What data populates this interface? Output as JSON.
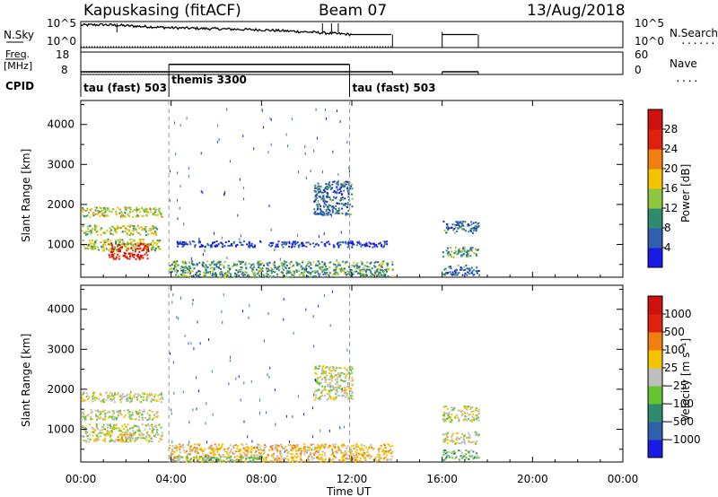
{
  "header": {
    "station": "Kapuskasing (fitACF)",
    "beam": "Beam 07",
    "date": "13/Aug/2018"
  },
  "summary_panels": {
    "nsky_label": "N.Sky",
    "nsearch_label": "N.Search",
    "nsearch_marker": "......",
    "freq_label_top": "Freq.",
    "freq_label_bottom": "[MHz]",
    "nave_label": "Nave",
    "nave_marker": "....",
    "cpid_label": "CPID",
    "noise_left_ticks": [
      "10^5",
      "10^0"
    ],
    "noise_right_ticks": [
      "10^5",
      "10^0"
    ],
    "freq_left_ticks": [
      "18",
      "8"
    ],
    "freq_right_ticks": [
      "60",
      "0"
    ],
    "cpid_segments": [
      {
        "label": "tau (fast) 503",
        "start_h": 0.0,
        "end_h": 3.9
      },
      {
        "label": "themis 3300",
        "start_h": 3.9,
        "end_h": 11.9
      },
      {
        "label": "tau (fast) 503",
        "start_h": 11.9,
        "end_h": 24.0
      }
    ]
  },
  "axes": {
    "xlabel": "Time UT",
    "x_ticks": [
      "00:00",
      "04:00",
      "08:00",
      "12:00",
      "16:00",
      "20:00",
      "00:00"
    ],
    "power_ylabel": "Slant Range [km]",
    "velocity_ylabel": "Slant Range [km]",
    "y_ticks": [
      "1000",
      "2000",
      "3000",
      "4000"
    ]
  },
  "colorbars": {
    "power": {
      "label": "Power [dB]",
      "ticks": [
        "4",
        "8",
        "12",
        "16",
        "20",
        "24",
        "28"
      ],
      "colors": [
        "#1a1ae6",
        "#2f5fae",
        "#2f8a6e",
        "#8ec63f",
        "#f5c400",
        "#f07f10",
        "#e02010",
        "#d0100c"
      ]
    },
    "velocity": {
      "label": "Velocity [m s⁻¹]",
      "ticks": [
        "1000",
        "500",
        "100",
        "25",
        "−25",
        "−100",
        "−500",
        "−1000"
      ],
      "colors": [
        "#1a1ae6",
        "#2f5fae",
        "#2f8a6e",
        "#66c433",
        "#bdbdbd",
        "#f5c400",
        "#f07f10",
        "#e02010",
        "#d0100c"
      ]
    }
  },
  "chart_data": [
    {
      "type": "line",
      "title": "Kapuskasing (fitACF)",
      "subtitle": "Beam 07",
      "series": [
        {
          "name": "N.Sky",
          "x": [
            0.0,
            1.0,
            2.0,
            3.0,
            4.0,
            6.0,
            8.0,
            10.0,
            12.0,
            13.8,
            16.0,
            17.6
          ],
          "y": [
            4.3,
            4.4,
            4.2,
            4.0,
            3.8,
            3.6,
            3.4,
            3.0,
            2.5,
            2.5,
            2.5,
            2.5
          ]
        },
        {
          "name": "N.Search",
          "x": [
            0.0,
            24.0
          ],
          "y": [
            0.0,
            0.0
          ]
        }
      ],
      "gaps_h": [
        [
          13.8,
          16.0
        ],
        [
          17.6,
          24.0
        ]
      ]
    },
    {
      "type": "line",
      "series": [
        {
          "name": "Freq.",
          "x": [
            0.0,
            3.9,
            3.9,
            11.9,
            11.9,
            13.8,
            16.0,
            17.6
          ],
          "y": [
            10.0,
            10.0,
            10.0,
            10.0,
            10.0,
            10.0,
            10.0,
            10.0
          ]
        },
        {
          "name": "Nave",
          "x": [
            3.9,
            11.9
          ],
          "y": [
            27.0,
            27.0
          ]
        }
      ]
    },
    {
      "type": "heatmap",
      "ylabel": "Slant Range [km]",
      "xlabel": "Time UT",
      "xlim": [
        0,
        24
      ],
      "ylim": [
        180,
        4600
      ],
      "colorbar_label": "Power [dB]",
      "regions": [
        {
          "x": [
            0.0,
            3.6
          ],
          "y": [
            1700,
            1950
          ],
          "level": 3
        },
        {
          "x": [
            0.0,
            3.4
          ],
          "y": [
            1250,
            1500
          ],
          "level": 3
        },
        {
          "x": [
            0.0,
            3.5
          ],
          "y": [
            850,
            1150
          ],
          "level": 3
        },
        {
          "x": [
            1.2,
            3.0
          ],
          "y": [
            650,
            1050
          ],
          "level": 6
        },
        {
          "x": [
            3.9,
            13.8
          ],
          "y": [
            200,
            600
          ],
          "level": 2
        },
        {
          "x": [
            4.2,
            13.6
          ],
          "y": [
            950,
            1100
          ],
          "level": 0
        },
        {
          "x": [
            10.3,
            12.0
          ],
          "y": [
            1750,
            2600
          ],
          "level": 1
        },
        {
          "x": [
            16.0,
            17.6
          ],
          "y": [
            1300,
            1600
          ],
          "level": 1
        },
        {
          "x": [
            16.0,
            17.6
          ],
          "y": [
            700,
            950
          ],
          "level": 2
        },
        {
          "x": [
            16.0,
            17.6
          ],
          "y": [
            250,
            500
          ],
          "level": 1
        }
      ]
    },
    {
      "type": "heatmap",
      "ylabel": "Slant Range [km]",
      "xlabel": "Time UT",
      "xlim": [
        0,
        24
      ],
      "ylim": [
        180,
        4600
      ],
      "colorbar_label": "Velocity [m s⁻¹]",
      "regions": [
        {
          "x": [
            0.0,
            3.6
          ],
          "y": [
            1700,
            1950
          ],
          "level": 4
        },
        {
          "x": [
            0.0,
            3.4
          ],
          "y": [
            1250,
            1500
          ],
          "level": 4
        },
        {
          "x": [
            0.0,
            3.6
          ],
          "y": [
            700,
            1150
          ],
          "level": 4
        },
        {
          "x": [
            1.6,
            2.4
          ],
          "y": [
            700,
            900
          ],
          "level": 5
        },
        {
          "x": [
            3.9,
            13.8
          ],
          "y": [
            200,
            650
          ],
          "level": 5
        },
        {
          "x": [
            4.0,
            8.0
          ],
          "y": [
            200,
            350
          ],
          "level": 3
        },
        {
          "x": [
            10.3,
            12.0
          ],
          "y": [
            1750,
            2600
          ],
          "level": 4
        },
        {
          "x": [
            16.0,
            17.6
          ],
          "y": [
            1200,
            1600
          ],
          "level": 4
        },
        {
          "x": [
            16.0,
            17.6
          ],
          "y": [
            650,
            950
          ],
          "level": 4
        },
        {
          "x": [
            16.0,
            17.6
          ],
          "y": [
            250,
            500
          ],
          "level": 3
        }
      ]
    }
  ]
}
